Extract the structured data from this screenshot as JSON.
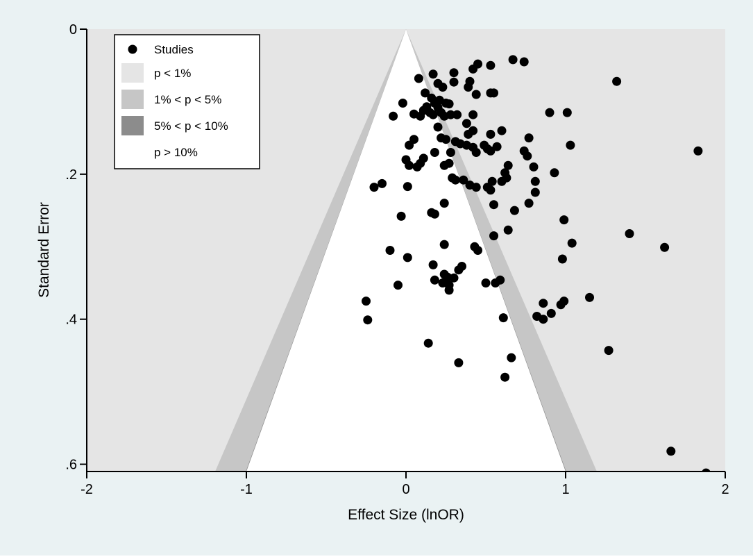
{
  "chart_data": {
    "type": "scatter",
    "subtype": "contour-enhanced funnel plot",
    "title": "",
    "xlabel": "Effect Size (lnOR)",
    "ylabel": "Standard Error",
    "xlim": [
      -2,
      2
    ],
    "ylim": [
      0.61,
      0
    ],
    "y_reversed": true,
    "grid": false,
    "legend_position": "top-left",
    "x_ticks": [
      "-2",
      "-1",
      "0",
      "1",
      "2"
    ],
    "x_tick_values": [
      -2,
      -1,
      0,
      1,
      2
    ],
    "y_ticks": [
      "0",
      ".2",
      ".4",
      ".6"
    ],
    "y_tick_values": [
      0,
      0.2,
      0.4,
      0.6
    ],
    "colors": {
      "outer_background": "#eaf2f3",
      "plot_background": "#e5e5e5",
      "p_lt_1": "#e5e5e5",
      "p_1_5": "#c6c6c6",
      "p_5_10": "#8c8c8c",
      "p_gt_10": "#ffffff",
      "marker": "#000000"
    },
    "contours": [
      {
        "name": "p < 1%",
        "z": 2.576,
        "color": "#e5e5e5"
      },
      {
        "name": "1% < p < 5%",
        "z": 1.96,
        "color": "#c6c6c6"
      },
      {
        "name": "5% < p < 10%",
        "z": 1.645,
        "color": "#8c8c8c"
      },
      {
        "name": "p > 10%",
        "z": 0,
        "color": "#ffffff"
      }
    ],
    "legend": [
      {
        "label": "Studies",
        "symbol": "dot"
      },
      {
        "label": "p < 1%",
        "color": "#e5e5e5"
      },
      {
        "label": "1% < p < 5%",
        "color": "#c6c6c6"
      },
      {
        "label": "5% < p < 10%",
        "color": "#8c8c8c"
      },
      {
        "label": "p > 10%",
        "color": "#ffffff"
      }
    ],
    "series": [
      {
        "name": "Studies",
        "points": [
          [
            0.67,
            0.042
          ],
          [
            0.74,
            0.045
          ],
          [
            0.45,
            0.048
          ],
          [
            0.53,
            0.05
          ],
          [
            0.42,
            0.055
          ],
          [
            0.3,
            0.06
          ],
          [
            0.17,
            0.062
          ],
          [
            0.08,
            0.068
          ],
          [
            0.4,
            0.072
          ],
          [
            0.2,
            0.075
          ],
          [
            1.32,
            0.072
          ],
          [
            0.3,
            0.073
          ],
          [
            0.23,
            0.08
          ],
          [
            0.39,
            0.08
          ],
          [
            0.12,
            0.088
          ],
          [
            0.44,
            0.09
          ],
          [
            0.53,
            0.088
          ],
          [
            0.55,
            0.088
          ],
          [
            0.16,
            0.095
          ],
          [
            0.21,
            0.098
          ],
          [
            0.18,
            0.102
          ],
          [
            0.25,
            0.102
          ],
          [
            -0.02,
            0.102
          ],
          [
            0.27,
            0.103
          ],
          [
            0.13,
            0.107
          ],
          [
            0.2,
            0.108
          ],
          [
            0.11,
            0.112
          ],
          [
            0.15,
            0.115
          ],
          [
            0.22,
            0.115
          ],
          [
            0.05,
            0.117
          ],
          [
            0.28,
            0.118
          ],
          [
            0.17,
            0.118
          ],
          [
            0.32,
            0.118
          ],
          [
            0.09,
            0.12
          ],
          [
            0.42,
            0.118
          ],
          [
            0.24,
            0.12
          ],
          [
            -0.08,
            0.12
          ],
          [
            0.9,
            0.115
          ],
          [
            1.01,
            0.115
          ],
          [
            0.2,
            0.135
          ],
          [
            0.38,
            0.13
          ],
          [
            0.42,
            0.14
          ],
          [
            0.39,
            0.145
          ],
          [
            0.53,
            0.145
          ],
          [
            0.6,
            0.14
          ],
          [
            0.77,
            0.15
          ],
          [
            0.22,
            0.15
          ],
          [
            0.25,
            0.152
          ],
          [
            0.05,
            0.152
          ],
          [
            0.31,
            0.155
          ],
          [
            0.34,
            0.158
          ],
          [
            0.02,
            0.16
          ],
          [
            0.38,
            0.16
          ],
          [
            0.49,
            0.16
          ],
          [
            1.03,
            0.16
          ],
          [
            0.42,
            0.163
          ],
          [
            0.51,
            0.165
          ],
          [
            0.57,
            0.162
          ],
          [
            0.53,
            0.168
          ],
          [
            0.28,
            0.17
          ],
          [
            0.18,
            0.17
          ],
          [
            0.44,
            0.17
          ],
          [
            0.74,
            0.168
          ],
          [
            1.83,
            0.168
          ],
          [
            0.76,
            0.175
          ],
          [
            0.11,
            0.178
          ],
          [
            0.0,
            0.18
          ],
          [
            0.09,
            0.185
          ],
          [
            0.27,
            0.185
          ],
          [
            0.24,
            0.188
          ],
          [
            0.02,
            0.188
          ],
          [
            0.64,
            0.188
          ],
          [
            0.8,
            0.19
          ],
          [
            0.07,
            0.19
          ],
          [
            0.62,
            0.198
          ],
          [
            0.93,
            0.198
          ],
          [
            0.29,
            0.205
          ],
          [
            0.31,
            0.208
          ],
          [
            0.36,
            0.208
          ],
          [
            0.63,
            0.205
          ],
          [
            0.54,
            0.21
          ],
          [
            0.6,
            0.21
          ],
          [
            0.81,
            0.21
          ],
          [
            -0.15,
            0.213
          ],
          [
            -0.2,
            0.218
          ],
          [
            0.01,
            0.217
          ],
          [
            0.4,
            0.215
          ],
          [
            0.44,
            0.218
          ],
          [
            0.51,
            0.218
          ],
          [
            0.53,
            0.222
          ],
          [
            0.81,
            0.225
          ],
          [
            0.24,
            0.24
          ],
          [
            0.77,
            0.24
          ],
          [
            0.55,
            0.242
          ],
          [
            0.68,
            0.25
          ],
          [
            0.16,
            0.253
          ],
          [
            0.18,
            0.255
          ],
          [
            -0.03,
            0.258
          ],
          [
            0.99,
            0.263
          ],
          [
            0.64,
            0.277
          ],
          [
            0.55,
            0.285
          ],
          [
            1.4,
            0.282
          ],
          [
            1.04,
            0.295
          ],
          [
            0.24,
            0.297
          ],
          [
            0.43,
            0.3
          ],
          [
            1.62,
            0.301
          ],
          [
            -0.1,
            0.305
          ],
          [
            0.45,
            0.305
          ],
          [
            0.01,
            0.315
          ],
          [
            0.98,
            0.317
          ],
          [
            0.17,
            0.325
          ],
          [
            0.35,
            0.327
          ],
          [
            0.33,
            0.332
          ],
          [
            0.24,
            0.338
          ],
          [
            0.3,
            0.343
          ],
          [
            0.26,
            0.342
          ],
          [
            0.18,
            0.346
          ],
          [
            0.59,
            0.346
          ],
          [
            0.23,
            0.35
          ],
          [
            0.27,
            0.353
          ],
          [
            0.5,
            0.35
          ],
          [
            0.56,
            0.35
          ],
          [
            -0.05,
            0.353
          ],
          [
            0.27,
            0.36
          ],
          [
            1.15,
            0.37
          ],
          [
            -0.25,
            0.375
          ],
          [
            0.99,
            0.375
          ],
          [
            0.86,
            0.378
          ],
          [
            0.97,
            0.38
          ],
          [
            0.91,
            0.392
          ],
          [
            0.82,
            0.396
          ],
          [
            0.86,
            0.4
          ],
          [
            -0.24,
            0.401
          ],
          [
            0.61,
            0.398
          ],
          [
            0.14,
            0.433
          ],
          [
            1.27,
            0.443
          ],
          [
            0.66,
            0.453
          ],
          [
            0.33,
            0.46
          ],
          [
            0.62,
            0.48
          ],
          [
            1.66,
            0.582
          ],
          [
            1.88,
            0.612
          ]
        ]
      }
    ]
  }
}
